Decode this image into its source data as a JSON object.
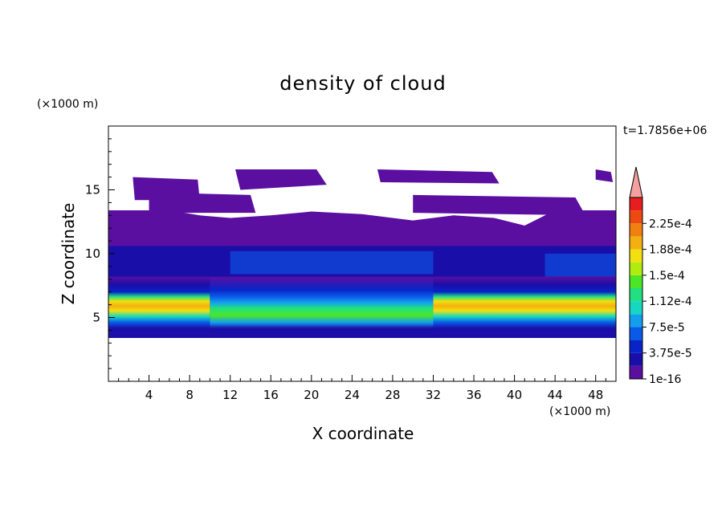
{
  "chart_data": {
    "type": "heatmap",
    "title": "density of cloud",
    "xlabel": "X coordinate",
    "ylabel": "Z coordinate",
    "x_unit": "(×1000 m)",
    "y_unit": "(×1000 m)",
    "time_label": "t=1.7856e+06",
    "xlim": [
      0,
      50
    ],
    "ylim": [
      0,
      20
    ],
    "x_ticks": [
      4,
      8,
      12,
      16,
      20,
      24,
      28,
      32,
      36,
      40,
      44,
      48
    ],
    "y_ticks": [
      5,
      10,
      15
    ],
    "grid": false,
    "colorbar": {
      "position": "right",
      "labels": [
        "1e-16",
        "3.75e-5",
        "7.5e-5",
        "1.12e-4",
        "1.5e-4",
        "1.88e-4",
        "2.25e-4"
      ],
      "colors": [
        "#5a0fa0",
        "#1a0ea8",
        "#0824c8",
        "#0a5ae8",
        "#12a0ee",
        "#16d8c0",
        "#22e080",
        "#4ce628",
        "#b0ec10",
        "#f2e010",
        "#f4b010",
        "#f08010",
        "#ec4a10",
        "#e81e1e"
      ],
      "extend_color": "#f4a0a0"
    },
    "bands": [
      {
        "x_from": 0,
        "x_to": 10,
        "z_bottom": 3.4,
        "z_top": 13.4,
        "z_peak_low": 5.4,
        "z_peak_high": 7.4,
        "peak_level": 0.95
      },
      {
        "x_from": 10,
        "x_to": 32,
        "z_bottom": 3.4,
        "z_top": 13.4,
        "z_peak_low": 5.4,
        "z_peak_high": 7.0,
        "peak_level": 0.55
      },
      {
        "x_from": 32,
        "x_to": 50,
        "z_bottom": 3.4,
        "z_top": 13.4,
        "z_peak_low": 5.4,
        "z_peak_high": 7.6,
        "peak_level": 0.95
      }
    ]
  }
}
